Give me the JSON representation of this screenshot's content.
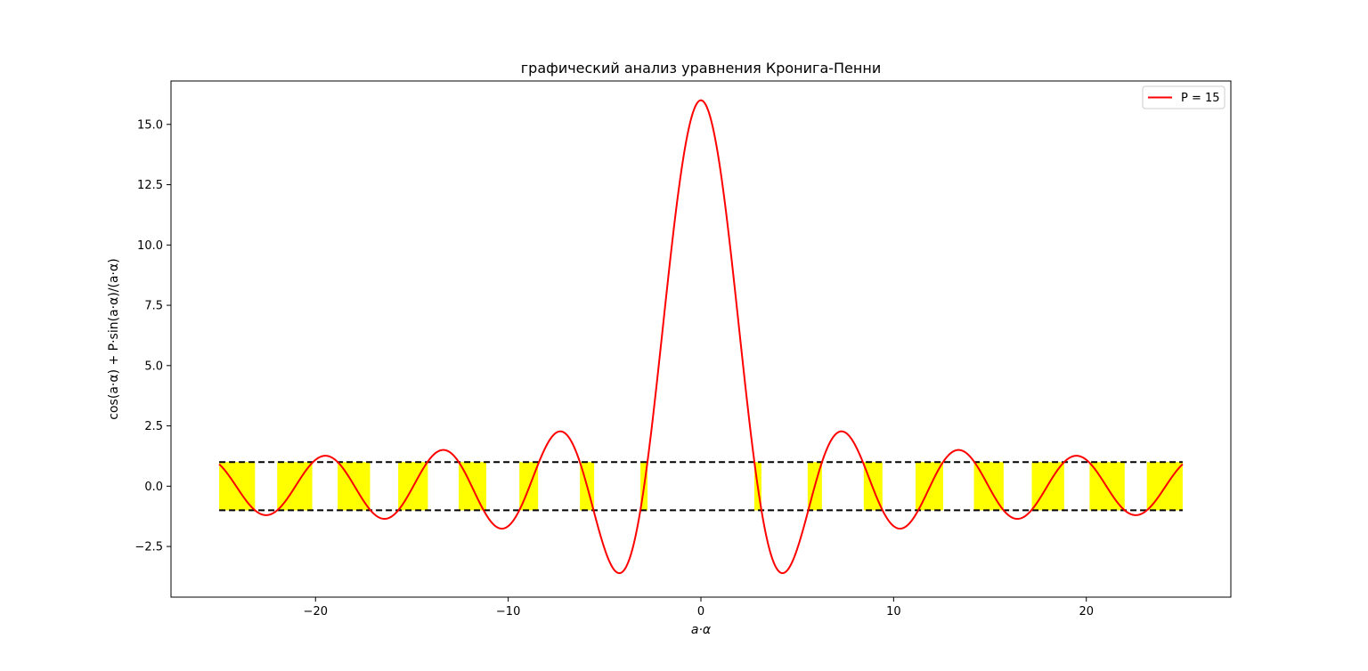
{
  "chart_data": {
    "type": "line",
    "title": "графический анализ уравнения Кронига-Пенни",
    "xlabel": "a·α",
    "ylabel": "cos(a·α) + P·sin(a·α)/(a·α)",
    "xlim": [
      -27.5,
      27.5
    ],
    "ylim": [
      -4.6,
      16.8
    ],
    "x_ticks": [
      -20,
      -10,
      0,
      10,
      20
    ],
    "x_tick_labels": [
      "−20",
      "−10",
      "0",
      "10",
      "20"
    ],
    "y_ticks": [
      -2.5,
      0.0,
      2.5,
      5.0,
      7.5,
      10.0,
      12.5,
      15.0
    ],
    "y_tick_labels": [
      "−2.5",
      "0.0",
      "2.5",
      "5.0",
      "7.5",
      "10.0",
      "12.5",
      "15.0"
    ],
    "grid": false,
    "legend_position": "top-right",
    "series": [
      {
        "name": "P = 15",
        "color": "#ff0000",
        "x_range": [
          -25,
          25
        ],
        "formula": "cos(x) + 15*sin(x)/x",
        "x": [
          -25,
          -23.62,
          -22.32,
          -21.19,
          -19.4,
          -17.53,
          -16.52,
          -15.71,
          -13.45,
          -11.48,
          -10.31,
          -9.05,
          -7.33,
          -5.73,
          -4.2,
          -2.92,
          0,
          2.92,
          4.2,
          5.73,
          7.33,
          9.05,
          10.31,
          11.48,
          13.45,
          15.71,
          16.52,
          17.53,
          19.4,
          21.19,
          22.32,
          23.62,
          25
        ],
        "y": [
          0.91,
          -0.55,
          -1.15,
          -0.65,
          1.25,
          0.13,
          -1.3,
          -1.02,
          1.5,
          -0.71,
          -1.75,
          -0.8,
          2.27,
          1.53,
          -3.55,
          -0.25,
          16.0,
          -0.25,
          -3.55,
          1.53,
          2.27,
          -0.8,
          -1.75,
          -0.71,
          1.5,
          -1.02,
          -1.3,
          0.13,
          1.25,
          -0.65,
          -1.15,
          -0.55,
          0.91
        ]
      }
    ],
    "reference_lines": {
      "y_values": [
        1,
        -1
      ],
      "style": "dashed",
      "color": "#000000",
      "x_range": [
        -25,
        25
      ]
    },
    "allowed_bands": {
      "fill": "#ffff00",
      "y_range": [
        -1,
        1
      ],
      "intervals": [
        [
          -25.0,
          -23.14
        ],
        [
          -21.99,
          -20.17
        ],
        [
          -18.85,
          -17.17
        ],
        [
          -15.71,
          -14.17
        ],
        [
          -12.57,
          -11.14
        ],
        [
          -9.42,
          -8.45
        ],
        [
          -6.28,
          -5.54
        ],
        [
          -3.14,
          -2.77
        ],
        [
          2.77,
          3.14
        ],
        [
          5.54,
          6.28
        ],
        [
          8.45,
          9.42
        ],
        [
          11.14,
          12.57
        ],
        [
          14.17,
          15.71
        ],
        [
          17.17,
          18.85
        ],
        [
          20.17,
          21.99
        ],
        [
          23.14,
          25.0
        ]
      ]
    }
  }
}
